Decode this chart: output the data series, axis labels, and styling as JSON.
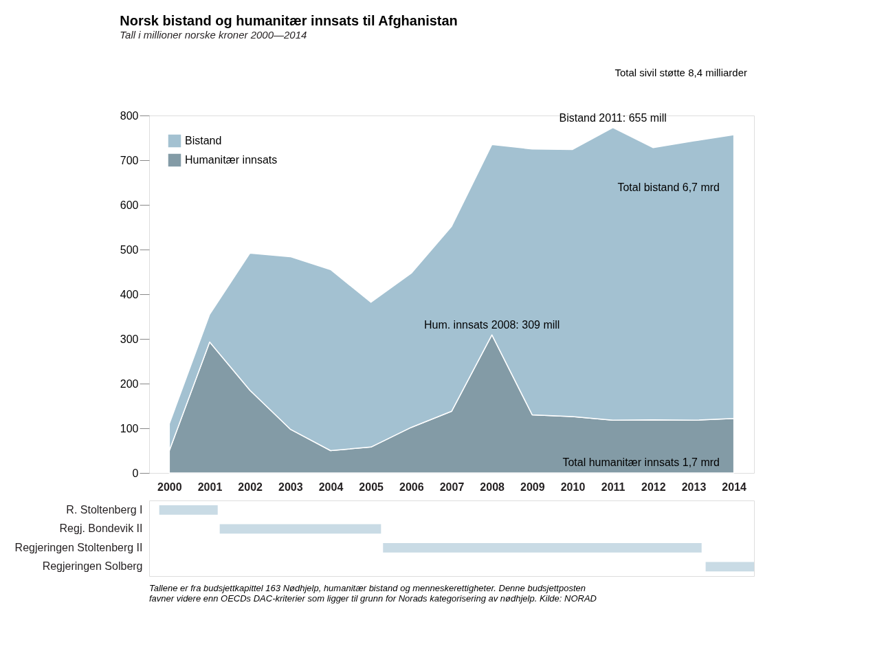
{
  "chart_data": [
    {
      "type": "area",
      "title": "Norsk bistand og humanitær innsats til Afghanistan",
      "subtitle": "Tall i millioner norske kroner 2000—2014",
      "stacked": true,
      "x": [
        2000,
        2001,
        2002,
        2003,
        2004,
        2005,
        2006,
        2007,
        2008,
        2009,
        2010,
        2011,
        2012,
        2013,
        2014
      ],
      "xlim": [
        1999.5,
        2014.5
      ],
      "xticks": [
        2000,
        2001,
        2002,
        2003,
        2004,
        2005,
        2006,
        2007,
        2008,
        2009,
        2010,
        2011,
        2012,
        2013,
        2014
      ],
      "ylim": [
        0,
        800
      ],
      "yticks": [
        0,
        100,
        200,
        300,
        400,
        500,
        600,
        700,
        800
      ],
      "grid": false,
      "legend": "top left",
      "series": [
        {
          "name": "Humanitær innsats",
          "color": "#839ba6",
          "values": [
            50,
            293,
            185,
            98,
            50,
            58,
            102,
            138,
            309,
            130,
            126,
            118,
            119,
            118,
            122
          ]
        },
        {
          "name": "Bistand",
          "color": "#a3c1d1",
          "values": [
            60,
            62,
            307,
            386,
            405,
            324,
            345,
            414,
            426,
            595,
            598,
            655,
            609,
            625,
            635
          ]
        }
      ],
      "annotations": [
        {
          "text": "Bistand 2011: 655 mill",
          "x": 2011,
          "y": 773
        },
        {
          "text": "Hum. innsats 2008: 309 mill",
          "x": 2008,
          "y": 309
        },
        "Total sivil støtte 8,4 milliarder",
        "Total bistand 6,7 mrd",
        "Total humanitær innsats 1,7 mrd"
      ]
    },
    {
      "type": "bar",
      "orientation": "horizontal",
      "tick_labels": "y",
      "grid": false,
      "categories": [
        "R. Stoltenberg I",
        "Regj. Bondevik II",
        "Regjeringen Stoltenberg II",
        "Regjeringen Solberg"
      ],
      "base": [
        1999.75,
        2001.25,
        2005.3,
        2013.3
      ],
      "values": [
        1.45,
        4.0,
        7.9,
        1.2
      ],
      "color": "#c9dbe5",
      "xlim": [
        1999.5,
        2014.5
      ],
      "annotations": [
        "Tallene er fra budsjettkapittel 163 Nødhjelp, humanitær bistand og menneskerettigheter. Denne budsjettposten\nfavner videre enn OECDs DAC-kriterier som ligger til grunn for Norads kategorisering av nødhjelp. Kilde: NORAD"
      ]
    }
  ]
}
